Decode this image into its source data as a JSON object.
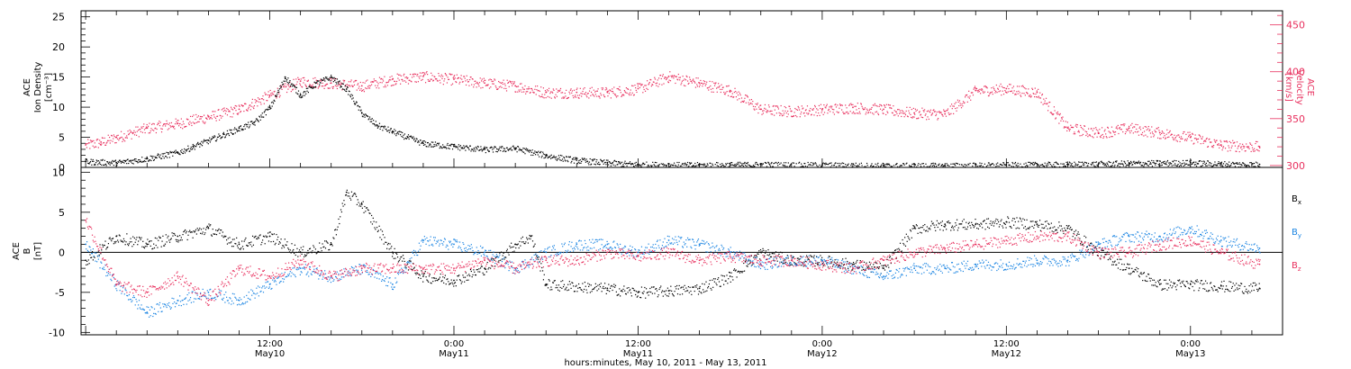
{
  "colors": {
    "black": "#000000",
    "pink": "#e8305e",
    "blue": "#1a84e2"
  },
  "axes": {
    "top_left_label": [
      "ACE",
      "Ion Density",
      "[cm⁻³]"
    ],
    "top_right_label": [
      "ACE",
      "Velocity",
      "[km/s]"
    ],
    "bottom_left_label": [
      "ACE",
      "B",
      "[nT]"
    ],
    "x_title": "hours:minutes, May 10, 2011 - May 13, 2011",
    "x_ticks": [
      {
        "time": "12:00",
        "date": "May10",
        "hours": 12
      },
      {
        "time": "0:00",
        "date": "May11",
        "hours": 24
      },
      {
        "time": "12:00",
        "date": "May11",
        "hours": 36
      },
      {
        "time": "0:00",
        "date": "May12",
        "hours": 48
      },
      {
        "time": "12:00",
        "date": "May12",
        "hours": 60
      },
      {
        "time": "0:00",
        "date": "May13",
        "hours": 72
      }
    ]
  },
  "legend": {
    "bx": {
      "main": "B",
      "sub": "x"
    },
    "by": {
      "main": "B",
      "sub": "y"
    },
    "bz": {
      "main": "B",
      "sub": "z"
    }
  },
  "chart_data": [
    {
      "type": "scatter",
      "panel": "top",
      "x_unit": "hours since May 10 00:00",
      "xlim": [
        -0.3,
        78
      ],
      "ylim_left": [
        0,
        26
      ],
      "ylim_right": [
        298,
        465
      ],
      "left_ticks": [
        0,
        5,
        10,
        15,
        20,
        25
      ],
      "right_ticks": [
        300,
        350,
        400,
        450
      ],
      "series": [
        {
          "name": "Ion Density",
          "axis": "left",
          "color": "#000000",
          "x": [
            0,
            2,
            4,
            6,
            7,
            8,
            9,
            10,
            11,
            12,
            13,
            14,
            15,
            16,
            17,
            18,
            19,
            20,
            21,
            22,
            24,
            26,
            28,
            30,
            32,
            34,
            36,
            40,
            44,
            48,
            52,
            56,
            60,
            64,
            68,
            72,
            74,
            76.5
          ],
          "y": [
            1,
            0.8,
            1.5,
            2.5,
            3.5,
            4.5,
            5.5,
            6.5,
            7.5,
            10,
            15,
            12,
            14,
            15,
            13,
            9,
            7,
            6,
            5,
            4,
            3.5,
            3,
            3.2,
            2,
            1.2,
            0.8,
            0.5,
            0.4,
            0.5,
            0.4,
            0.3,
            0.3,
            0.4,
            0.5,
            0.7,
            0.8,
            0.6,
            0.5
          ]
        },
        {
          "name": "Velocity",
          "axis": "right",
          "color": "#e8305e",
          "x": [
            0,
            1,
            2,
            4,
            6,
            8,
            10,
            12,
            14,
            16,
            18,
            20,
            22,
            24,
            26,
            28,
            30,
            32,
            34,
            36,
            38,
            40,
            42,
            44,
            46,
            48,
            50,
            52,
            54,
            56,
            58,
            60,
            62,
            64,
            66,
            68,
            70,
            72,
            74,
            76.5
          ],
          "y": [
            322,
            325,
            330,
            340,
            345,
            352,
            360,
            375,
            390,
            388,
            385,
            392,
            395,
            392,
            388,
            385,
            378,
            378,
            378,
            382,
            395,
            388,
            380,
            360,
            358,
            360,
            362,
            360,
            356,
            355,
            380,
            382,
            378,
            340,
            335,
            340,
            335,
            330,
            322,
            320
          ]
        }
      ]
    },
    {
      "type": "scatter",
      "panel": "bottom",
      "x_unit": "hours since May 10 00:00",
      "xlim": [
        -0.3,
        78
      ],
      "ylim": [
        -10.3,
        10.6
      ],
      "ticks": [
        -10,
        -5,
        0,
        5,
        10
      ],
      "series": [
        {
          "name": "Bx",
          "color": "#000000",
          "x": [
            0,
            2,
            4,
            6,
            8,
            10,
            12,
            14,
            16,
            17,
            18,
            20,
            22,
            24,
            26,
            28,
            29,
            30,
            34,
            36,
            38,
            40,
            42,
            44,
            46,
            48,
            50,
            52,
            54,
            56,
            58,
            60,
            62,
            64,
            66,
            68,
            70,
            72,
            74,
            76.5
          ],
          "y": [
            -1,
            2,
            1,
            2,
            3,
            1,
            2,
            0,
            1,
            7.5,
            6,
            0,
            -3,
            -3.5,
            -2,
            1,
            2,
            -4,
            -4.5,
            -5,
            -4.8,
            -4.5,
            -3,
            0,
            -1,
            -1,
            -1.5,
            -2,
            3,
            3.5,
            3.5,
            3.8,
            3.5,
            3,
            0,
            -2,
            -4,
            -4,
            -4.2,
            -4.5
          ]
        },
        {
          "name": "By",
          "color": "#1a84e2",
          "x": [
            0,
            2,
            4,
            6,
            8,
            10,
            12,
            14,
            16,
            18,
            20,
            22,
            24,
            26,
            28,
            30,
            32,
            34,
            36,
            38,
            40,
            42,
            44,
            46,
            48,
            50,
            52,
            54,
            56,
            58,
            60,
            62,
            64,
            66,
            68,
            70,
            72,
            74,
            76.5
          ],
          "y": [
            1,
            -4,
            -7.5,
            -6,
            -5,
            -6,
            -4,
            -2,
            -3,
            -2,
            -4,
            1.5,
            1,
            0,
            -2,
            0,
            1,
            1,
            0,
            1.5,
            1,
            0,
            -1.5,
            -1,
            -1,
            -2,
            -3,
            -2,
            -2,
            -1.5,
            -1.5,
            -1,
            -1,
            1,
            2,
            2,
            3,
            1.5,
            0.5
          ]
        },
        {
          "name": "Bz",
          "color": "#e8305e",
          "x": [
            0,
            2,
            4,
            6,
            8,
            10,
            12,
            14,
            16,
            18,
            20,
            22,
            24,
            26,
            28,
            30,
            32,
            34,
            36,
            38,
            40,
            42,
            44,
            46,
            48,
            50,
            52,
            54,
            56,
            58,
            60,
            62,
            64,
            66,
            68,
            70,
            72,
            74,
            76.5
          ],
          "y": [
            4,
            -4,
            -5,
            -3,
            -6,
            -2,
            -3,
            -1,
            -3,
            -2,
            -2,
            -2,
            -2,
            -1,
            -2,
            -1,
            -1,
            0,
            -0.5,
            0,
            -1,
            -0.5,
            -1,
            -1,
            -1.5,
            -2,
            -1,
            0,
            0.5,
            1,
            1.5,
            2,
            2,
            0,
            0,
            1,
            1.5,
            0,
            -1.5
          ]
        }
      ]
    }
  ]
}
